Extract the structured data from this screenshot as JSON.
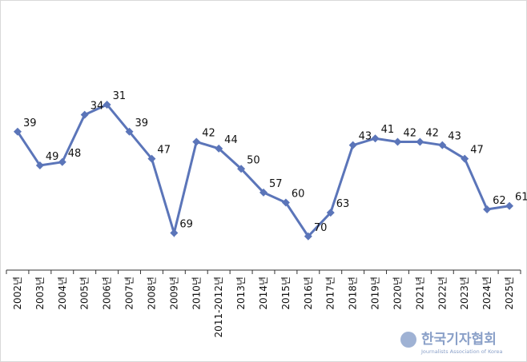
{
  "chart_data": {
    "type": "line",
    "categories": [
      "2002년",
      "2003년",
      "2004년",
      "2005년",
      "2006년",
      "2007년",
      "2008년",
      "2009년",
      "2010년",
      "2011-2012년",
      "2013년",
      "2014년",
      "2015년",
      "2016년",
      "2017년",
      "2018년",
      "2019년",
      "2020년",
      "2021년",
      "2022년",
      "2023년",
      "2024년",
      "2025년"
    ],
    "series": [
      {
        "color": "#5b75b9",
        "values": [
          39,
          49,
          48,
          34,
          31,
          39,
          47,
          69,
          42,
          44,
          50,
          57,
          60,
          70,
          63,
          43,
          41,
          42,
          42,
          43,
          47,
          62,
          61
        ]
      }
    ],
    "ylim": [
      80,
      0
    ]
  },
  "watermark": {
    "title": "한국기자협회",
    "subtitle": "Journalists Association of Korea"
  }
}
